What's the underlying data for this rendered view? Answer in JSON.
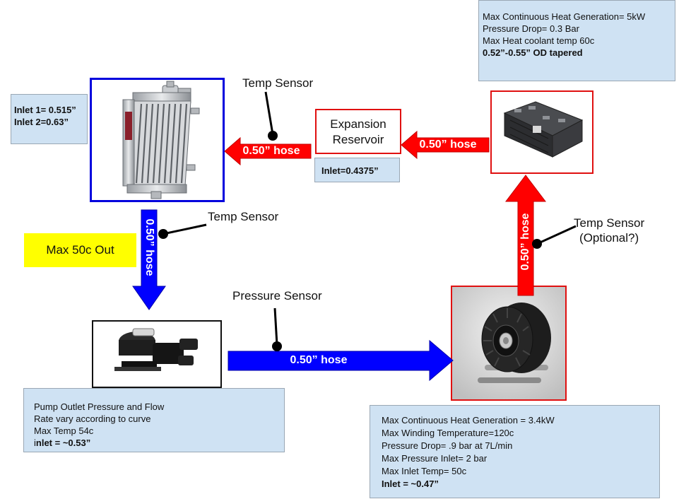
{
  "controller_note": {
    "lines": [
      "Max Continuous Heat Generation= 5kW",
      "Pressure Drop= 0.3 Bar",
      "Max Heat coolant temp 60c"
    ],
    "bold_line": "0.52”-0.55” OD tapered"
  },
  "radiator_note": {
    "line1": "Inlet 1= 0.515”",
    "line2": "Inlet 2=0.63”"
  },
  "reservoir": {
    "title_line1": "Expansion",
    "title_line2": "Reservoir",
    "inlet_note": "Inlet=0.4375”"
  },
  "sensors": {
    "top": "Temp Sensor",
    "middle": "Temp Sensor",
    "right_line1": "Temp Sensor",
    "right_line2": "(Optional?)",
    "pressure": "Pressure Sensor"
  },
  "max_out": "Max 50c Out",
  "hoses": {
    "reservoir_to_radiator": "0.50” hose",
    "controller_to_reservoir": "0.50” hose",
    "radiator_to_pump": "0.50” hose",
    "pump_to_motor": "0.50” hose",
    "motor_to_controller": "0.50” hose"
  },
  "pump_note": {
    "line1": "Pump Outlet Pressure and Flow",
    "line2": "Rate vary according to curve",
    "line3": "Max Temp 54c",
    "line4_prefix": "i",
    "line4_bold": "nlet = ~0.53”"
  },
  "motor_note": {
    "lines": [
      "Max Continuous Heat Generation = 3.4kW",
      "Max Winding Temperature=120c",
      "Pressure Drop= .9 bar at 7L/min",
      "Max Pressure Inlet= 2 bar",
      "Max Inlet Temp= 50c"
    ],
    "bold_line": "Inlet = ~0.47”"
  },
  "colors": {
    "hot_arrow": "#ff0000",
    "cold_arrow": "#0000ff",
    "note_fill": "#cfe2f3",
    "highlight": "#ffff00"
  },
  "icons": [
    "radiator-icon",
    "controller-icon",
    "pump-icon",
    "motor-icon"
  ]
}
